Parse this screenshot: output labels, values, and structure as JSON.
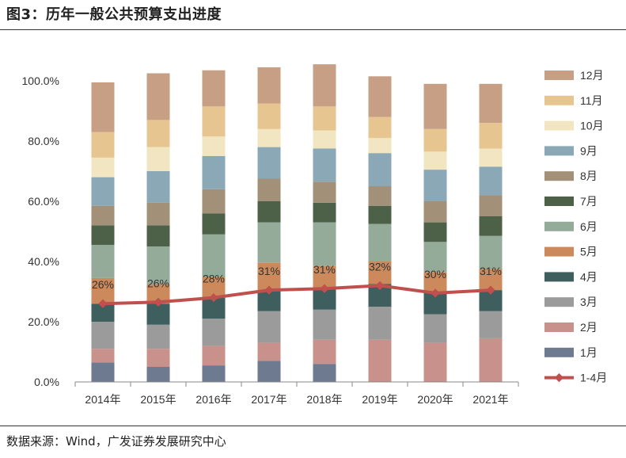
{
  "title": "图3：历年一般公共预算支出进度",
  "source": "数据来源：Wind，广发证券发展研究中心",
  "chart_data": {
    "type": "bar",
    "stacked": true,
    "categories": [
      "2014年",
      "2015年",
      "2016年",
      "2017年",
      "2018年",
      "2019年",
      "2020年",
      "2021年"
    ],
    "y_ticks": [
      "0.0%",
      "20.0%",
      "40.0%",
      "60.0%",
      "80.0%",
      "100.0%"
    ],
    "ylim": [
      0,
      110
    ],
    "series": [
      {
        "name": "1月",
        "color": "#6e7a8f",
        "values": [
          6.5,
          5.0,
          5.5,
          7.0,
          6.0,
          0,
          0,
          0
        ]
      },
      {
        "name": "2月",
        "color": "#c8918c",
        "values": [
          4.5,
          6.0,
          6.5,
          6.0,
          8.0,
          14.0,
          13.0,
          14.5
        ]
      },
      {
        "name": "3月",
        "color": "#9b9b9b",
        "values": [
          9.0,
          8.0,
          9.0,
          10.5,
          10.0,
          11.0,
          9.5,
          9.0
        ]
      },
      {
        "name": "4月",
        "color": "#3f5f5f",
        "values": [
          6.0,
          7.0,
          7.0,
          7.0,
          7.0,
          7.5,
          7.5,
          7.0
        ]
      },
      {
        "name": "5月",
        "color": "#cc8a5c",
        "values": [
          8.5,
          6.5,
          7.0,
          9.0,
          7.5,
          7.5,
          6.5,
          7.0
        ]
      },
      {
        "name": "6月",
        "color": "#93ab98",
        "values": [
          11.0,
          12.5,
          14.0,
          13.5,
          14.5,
          12.5,
          10.0,
          11.0
        ]
      },
      {
        "name": "7月",
        "color": "#4d6148",
        "values": [
          6.5,
          7.0,
          7.0,
          7.0,
          6.5,
          6.0,
          6.5,
          6.5
        ]
      },
      {
        "name": "8月",
        "color": "#a39079",
        "values": [
          6.5,
          7.5,
          8.0,
          7.5,
          7.0,
          6.5,
          7.0,
          7.0
        ]
      },
      {
        "name": "9月",
        "color": "#8aa8b5",
        "values": [
          9.5,
          10.5,
          11.0,
          10.5,
          11.0,
          11.0,
          10.5,
          9.5
        ]
      },
      {
        "name": "10月",
        "color": "#f2e6c2",
        "values": [
          6.5,
          8.0,
          6.5,
          6.0,
          6.0,
          5.0,
          6.0,
          6.0
        ]
      },
      {
        "name": "11月",
        "color": "#e7c590",
        "values": [
          8.5,
          9.0,
          10.0,
          8.5,
          8.0,
          7.0,
          7.5,
          8.5
        ]
      },
      {
        "name": "12月",
        "color": "#c79f84",
        "values": [
          16.5,
          15.5,
          12.0,
          12.0,
          14.0,
          13.5,
          15.0,
          13.0
        ]
      }
    ],
    "line": {
      "name": "1-4月",
      "color": "#c0504d",
      "values": [
        26,
        26.5,
        28,
        30.5,
        31,
        32,
        29.5,
        30.5
      ],
      "labels": [
        "26%",
        "26%",
        "28%",
        "31%",
        "31%",
        "32%",
        "30%",
        "31%"
      ]
    }
  }
}
